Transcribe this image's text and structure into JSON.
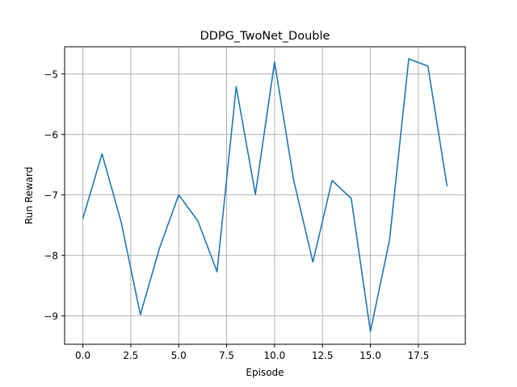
{
  "chart_data": {
    "type": "line",
    "title": "DDPG_TwoNet_Double",
    "xlabel": "Episode",
    "ylabel": "Run Reward",
    "xlim": [
      -0.95,
      19.95
    ],
    "ylim": [
      -9.47,
      -4.55
    ],
    "grid": true,
    "xticks": [
      0.0,
      2.5,
      5.0,
      7.5,
      10.0,
      12.5,
      15.0,
      17.5
    ],
    "xtick_labels": [
      "0.0",
      "2.5",
      "5.0",
      "7.5",
      "10.0",
      "12.5",
      "15.0",
      "17.5"
    ],
    "yticks": [
      -9,
      -8,
      -7,
      -6,
      -5
    ],
    "ytick_labels": [
      "−9",
      "−8",
      "−7",
      "−6",
      "−5"
    ],
    "series": [
      {
        "color": "#1f77b4",
        "x": [
          0,
          1,
          2,
          3,
          4,
          5,
          6,
          7,
          8,
          9,
          10,
          11,
          12,
          13,
          14,
          15,
          16,
          17,
          18,
          19
        ],
        "y": [
          -7.39,
          -6.32,
          -7.45,
          -8.98,
          -7.88,
          -7.0,
          -7.43,
          -8.27,
          -5.21,
          -6.99,
          -4.8,
          -6.76,
          -8.11,
          -6.76,
          -7.06,
          -9.26,
          -7.74,
          -4.75,
          -4.87,
          -6.86
        ]
      }
    ]
  }
}
